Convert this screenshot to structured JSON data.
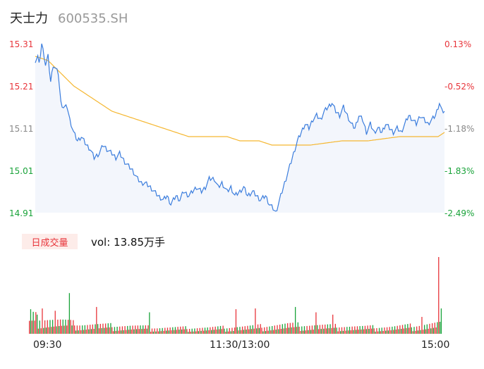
{
  "header": {
    "stock_name": "天士力",
    "stock_code": "600535.SH"
  },
  "colors": {
    "price_line": "#3b7ddd",
    "avg_line": "#f5b731",
    "up": "#e8353b",
    "down": "#1aa33a",
    "neutral": "#888888",
    "area_fill": "#f3f6fc"
  },
  "volume_panel": {
    "tab_label": "日成交量",
    "readout": "vol: 13.85万手"
  },
  "chart_data": {
    "type": "line",
    "price_axis": {
      "ticks": [
        "15.31",
        "15.21",
        "15.11",
        "15.01",
        "14.91"
      ],
      "ylim": [
        14.91,
        15.31
      ]
    },
    "pct_axis": {
      "ticks": [
        "0.13%",
        "-0.52%",
        "-1.18%",
        "-1.83%",
        "-2.49%"
      ]
    },
    "x_ticks": [
      "09:30",
      "11:30/13:00",
      "15:00"
    ],
    "price_series": {
      "name": "",
      "anchors": [
        [
          0,
          15.27
        ],
        [
          2,
          15.28
        ],
        [
          3,
          15.26
        ],
        [
          5,
          15.31
        ],
        [
          7,
          15.28
        ],
        [
          8,
          15.26
        ],
        [
          10,
          15.28
        ],
        [
          12,
          15.22
        ],
        [
          14,
          15.26
        ],
        [
          16,
          15.25
        ],
        [
          18,
          15.24
        ],
        [
          20,
          15.17
        ],
        [
          22,
          15.16
        ],
        [
          25,
          15.16
        ],
        [
          27,
          15.13
        ],
        [
          30,
          15.1
        ],
        [
          33,
          15.08
        ],
        [
          36,
          15.09
        ],
        [
          40,
          15.07
        ],
        [
          43,
          15.06
        ],
        [
          46,
          15.04
        ],
        [
          50,
          15.05
        ],
        [
          53,
          15.07
        ],
        [
          56,
          15.06
        ],
        [
          60,
          15.05
        ],
        [
          63,
          15.04
        ],
        [
          66,
          15.05
        ],
        [
          70,
          15.03
        ],
        [
          73,
          15.02
        ],
        [
          76,
          15.01
        ],
        [
          80,
          14.99
        ],
        [
          83,
          14.98
        ],
        [
          86,
          14.98
        ],
        [
          90,
          14.97
        ],
        [
          93,
          14.96
        ],
        [
          96,
          14.95
        ],
        [
          100,
          14.94
        ],
        [
          103,
          14.95
        ],
        [
          106,
          14.93
        ],
        [
          110,
          14.95
        ],
        [
          113,
          14.94
        ],
        [
          116,
          14.96
        ],
        [
          120,
          14.95
        ],
        [
          123,
          14.96
        ],
        [
          126,
          14.97
        ],
        [
          130,
          14.96
        ],
        [
          133,
          14.97
        ],
        [
          136,
          14.99
        ],
        [
          140,
          14.99
        ],
        [
          143,
          14.97
        ],
        [
          146,
          14.98
        ],
        [
          150,
          14.96
        ],
        [
          153,
          14.97
        ],
        [
          156,
          14.95
        ],
        [
          160,
          14.96
        ],
        [
          163,
          14.97
        ],
        [
          166,
          14.95
        ],
        [
          170,
          14.96
        ],
        [
          173,
          14.95
        ],
        [
          176,
          14.94
        ],
        [
          180,
          14.95
        ],
        [
          183,
          14.93
        ],
        [
          186,
          14.92
        ],
        [
          188,
          14.91
        ],
        [
          190,
          14.93
        ],
        [
          193,
          14.96
        ],
        [
          196,
          14.99
        ],
        [
          199,
          15.02
        ],
        [
          202,
          15.05
        ],
        [
          205,
          15.08
        ],
        [
          208,
          15.1
        ],
        [
          211,
          15.12
        ],
        [
          214,
          15.11
        ],
        [
          217,
          15.13
        ],
        [
          220,
          15.14
        ],
        [
          223,
          15.13
        ],
        [
          226,
          15.15
        ],
        [
          229,
          15.16
        ],
        [
          232,
          15.17
        ],
        [
          235,
          15.15
        ],
        [
          238,
          15.14
        ],
        [
          241,
          15.16
        ],
        [
          244,
          15.14
        ],
        [
          247,
          15.12
        ],
        [
          250,
          15.11
        ],
        [
          253,
          15.14
        ],
        [
          256,
          15.13
        ],
        [
          259,
          15.1
        ],
        [
          262,
          15.12
        ],
        [
          265,
          15.1
        ],
        [
          268,
          15.11
        ],
        [
          271,
          15.1
        ],
        [
          274,
          15.12
        ],
        [
          277,
          15.11
        ],
        [
          280,
          15.1
        ],
        [
          283,
          15.11
        ],
        [
          286,
          15.1
        ],
        [
          289,
          15.12
        ],
        [
          292,
          15.14
        ],
        [
          295,
          15.13
        ],
        [
          298,
          15.12
        ],
        [
          301,
          15.14
        ],
        [
          304,
          15.13
        ],
        [
          307,
          15.12
        ],
        [
          310,
          15.13
        ],
        [
          313,
          15.14
        ],
        [
          316,
          15.17
        ],
        [
          318,
          15.15
        ],
        [
          320,
          15.15
        ]
      ]
    },
    "avg_series": {
      "name": "",
      "anchors": [
        [
          0,
          15.28
        ],
        [
          10,
          15.27
        ],
        [
          20,
          15.24
        ],
        [
          30,
          15.21
        ],
        [
          40,
          15.19
        ],
        [
          50,
          15.17
        ],
        [
          60,
          15.15
        ],
        [
          70,
          15.14
        ],
        [
          80,
          15.13
        ],
        [
          90,
          15.12
        ],
        [
          100,
          15.11
        ],
        [
          110,
          15.1
        ],
        [
          120,
          15.09
        ],
        [
          150,
          15.09
        ],
        [
          160,
          15.08
        ],
        [
          175,
          15.08
        ],
        [
          185,
          15.07
        ],
        [
          200,
          15.07
        ],
        [
          215,
          15.07
        ],
        [
          240,
          15.08
        ],
        [
          260,
          15.08
        ],
        [
          285,
          15.09
        ],
        [
          300,
          15.09
        ],
        [
          315,
          15.09
        ],
        [
          320,
          15.1
        ]
      ]
    },
    "volume_series": {
      "count": 320,
      "profile": [
        [
          0,
          0.22
        ],
        [
          10,
          0.18
        ],
        [
          25,
          0.15
        ],
        [
          40,
          0.11
        ],
        [
          60,
          0.1
        ],
        [
          80,
          0.09
        ],
        [
          100,
          0.07
        ],
        [
          120,
          0.07
        ],
        [
          140,
          0.07
        ],
        [
          160,
          0.08
        ],
        [
          180,
          0.09
        ],
        [
          200,
          0.11
        ],
        [
          220,
          0.1
        ],
        [
          240,
          0.09
        ],
        [
          260,
          0.08
        ],
        [
          280,
          0.08
        ],
        [
          300,
          0.1
        ],
        [
          315,
          0.12
        ],
        [
          320,
          0.12
        ]
      ],
      "spikes": [
        [
          1,
          0.32
        ],
        [
          6,
          0.25
        ],
        [
          10,
          0.33
        ],
        [
          20,
          0.3
        ],
        [
          31,
          0.53
        ],
        [
          52,
          0.35
        ],
        [
          93,
          0.28
        ],
        [
          160,
          0.32
        ],
        [
          175,
          0.33
        ],
        [
          206,
          0.35
        ],
        [
          222,
          0.28
        ],
        [
          235,
          0.25
        ],
        [
          304,
          0.22
        ],
        [
          317,
          1.0
        ],
        [
          319,
          0.33
        ]
      ]
    }
  }
}
